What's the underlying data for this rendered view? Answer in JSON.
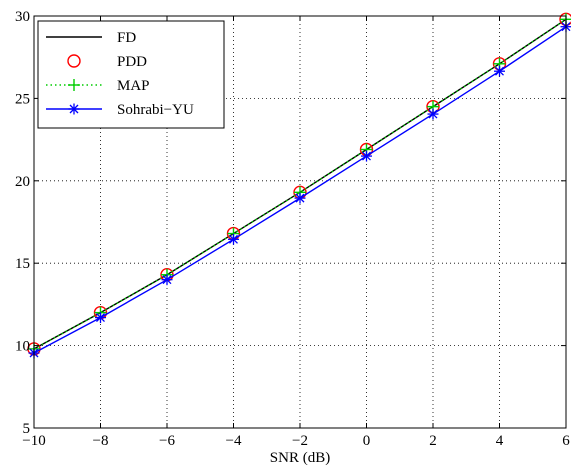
{
  "chart_data": {
    "type": "line",
    "title": "",
    "xlabel": "SNR (dB)",
    "ylabel": "",
    "xlim": [
      -10,
      6
    ],
    "ylim": [
      5,
      30
    ],
    "xticks": [
      -10,
      -8,
      -6,
      -4,
      -2,
      0,
      2,
      4,
      6
    ],
    "yticks": [
      5,
      10,
      15,
      20,
      25,
      30
    ],
    "xtick_labels": [
      "−10",
      "−8",
      "−6",
      "−4",
      "−2",
      "0",
      "2",
      "4",
      "6"
    ],
    "ytick_labels": [
      "5",
      "10",
      "15",
      "20",
      "25",
      "30"
    ],
    "grid": true,
    "legend_position": "top-left",
    "x": [
      -10,
      -8,
      -6,
      -4,
      -2,
      0,
      2,
      4,
      6
    ],
    "series": [
      {
        "name": "FD",
        "values": [
          9.8,
          12.0,
          14.3,
          16.8,
          19.3,
          21.9,
          24.5,
          27.1,
          29.8
        ],
        "color": "#000000",
        "line": "solid",
        "marker": "none"
      },
      {
        "name": "PDD",
        "values": [
          9.8,
          12.0,
          14.3,
          16.8,
          19.3,
          21.9,
          24.5,
          27.1,
          29.8
        ],
        "color": "#ff0000",
        "line": "none",
        "marker": "circle"
      },
      {
        "name": "MAP",
        "values": [
          9.8,
          12.0,
          14.3,
          16.8,
          19.3,
          21.9,
          24.5,
          27.1,
          29.8
        ],
        "color": "#00cc00",
        "line": "dotted",
        "marker": "plus"
      },
      {
        "name": "Sohrabi−YU",
        "values": [
          9.55,
          11.7,
          14.0,
          16.45,
          18.95,
          21.5,
          24.05,
          26.65,
          29.35
        ],
        "color": "#0000ff",
        "line": "solid",
        "marker": "asterisk"
      }
    ]
  }
}
